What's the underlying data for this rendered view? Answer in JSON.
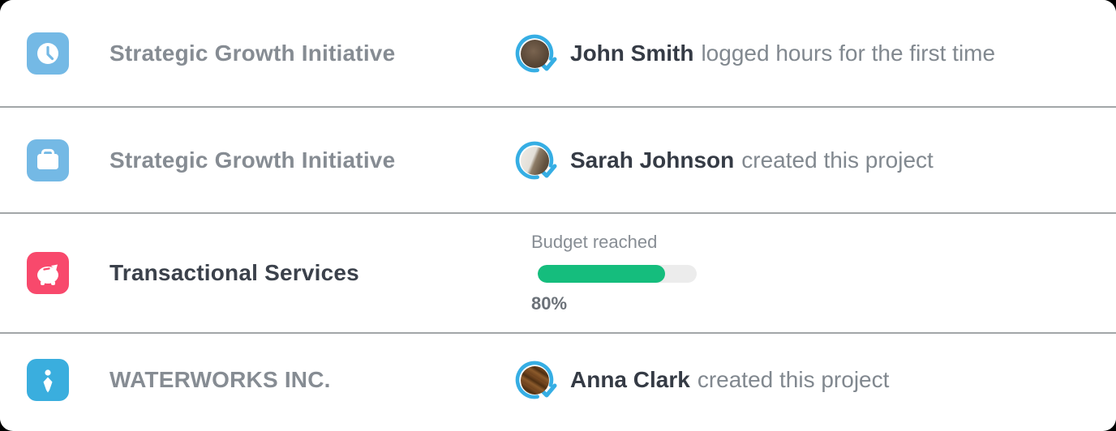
{
  "rows": [
    {
      "icon": "clock",
      "title": "Strategic Growth Initiative",
      "activity": {
        "name": "John Smith",
        "action": "logged hours for the first time"
      }
    },
    {
      "icon": "briefcase",
      "title": "Strategic Growth Initiative",
      "activity": {
        "name": "Sarah Johnson",
        "action": "created this project"
      }
    },
    {
      "icon": "piggy-bank",
      "title": "Transactional Services",
      "budget": {
        "label": "Budget reached",
        "percent": 80,
        "percent_label": "80%"
      }
    },
    {
      "icon": "tie",
      "title": "WATERWORKS INC.",
      "activity": {
        "name": "Anna Clark",
        "action": "created this project"
      }
    }
  ],
  "colors": {
    "icon_blue": "#74b9e5",
    "icon_pink": "#f8496c",
    "icon_cyan": "#3aaede",
    "avatar_ring_blue": "#36aee4",
    "progress_green": "#15bd7d",
    "progress_track": "#ececec",
    "title_gray": "#868c93",
    "title_dark": "#3b414b",
    "divider_gray": "#a2a6a8"
  }
}
